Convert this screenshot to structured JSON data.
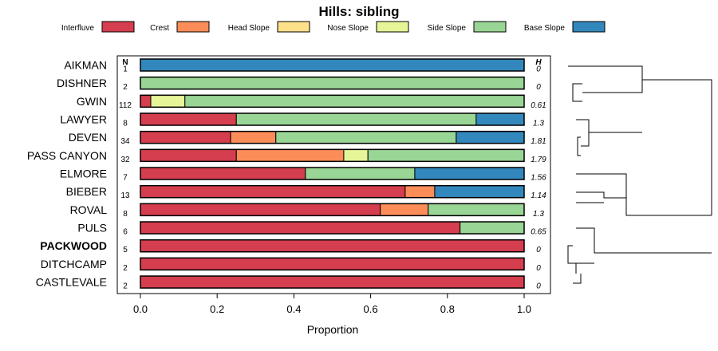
{
  "chart_data": {
    "type": "bar",
    "stacked": true,
    "orientation": "horizontal",
    "title": "Hills: sibling",
    "xlabel": "Proportion",
    "ylabel": "",
    "xlim": [
      0,
      1
    ],
    "xticks": [
      "0.0",
      "0.2",
      "0.4",
      "0.6",
      "0.8",
      "1.0"
    ],
    "n_header": "N",
    "h_header": "H",
    "legend": [
      {
        "name": "Interfluve",
        "color": "#D53E4F"
      },
      {
        "name": "Crest",
        "color": "#FC8D59"
      },
      {
        "name": "Head Slope",
        "color": "#FEE08B"
      },
      {
        "name": "Nose Slope",
        "color": "#E6F598"
      },
      {
        "name": "Side Slope",
        "color": "#99D594"
      },
      {
        "name": "Base Slope",
        "color": "#3288BD"
      }
    ],
    "categories": [
      "AIKMAN",
      "DISHNER",
      "GWIN",
      "LAWYER",
      "DEVEN",
      "PASS CANYON",
      "ELMORE",
      "BIEBER",
      "ROVAL",
      "PULS",
      "PACKWOOD",
      "DITCHCAMP",
      "CASTLEVALE"
    ],
    "bold_category": "PACKWOOD",
    "n": [
      "1",
      "2",
      "112",
      "8",
      "34",
      "32",
      "7",
      "13",
      "8",
      "6",
      "5",
      "2",
      "2"
    ],
    "h": [
      "0",
      "0",
      "0.61",
      "1.3",
      "1.81",
      "1.79",
      "1.56",
      "1.14",
      "1.3",
      "0.65",
      "0",
      "0",
      "0"
    ],
    "series": [
      {
        "name": "Interfluve",
        "values": [
          0,
          0,
          0.027,
          0.25,
          0.235,
          0.25,
          0.43,
          0.69,
          0.625,
          0.833,
          1,
          1,
          1
        ]
      },
      {
        "name": "Crest",
        "values": [
          0,
          0,
          0,
          0,
          0.118,
          0.28,
          0,
          0.077,
          0.125,
          0,
          0,
          0,
          0
        ]
      },
      {
        "name": "Head Slope",
        "values": [
          0,
          0,
          0,
          0,
          0,
          0,
          0,
          0,
          0,
          0,
          0,
          0,
          0
        ]
      },
      {
        "name": "Nose Slope",
        "values": [
          0,
          0,
          0.089,
          0,
          0,
          0.063,
          0,
          0,
          0,
          0,
          0,
          0,
          0
        ]
      },
      {
        "name": "Side Slope",
        "values": [
          0,
          1,
          0.884,
          0.625,
          0.47,
          0.407,
          0.285,
          0,
          0.25,
          0.167,
          0,
          0,
          0
        ]
      },
      {
        "name": "Base Slope",
        "values": [
          1,
          0,
          0,
          0.125,
          0.177,
          0,
          0.285,
          0.233,
          0,
          0,
          0,
          0,
          0
        ]
      }
    ]
  }
}
